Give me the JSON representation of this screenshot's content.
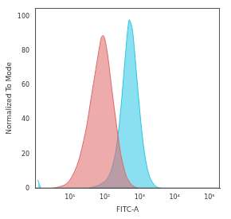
{
  "chart_data": {
    "type": "line",
    "x_label": "FITC-A",
    "y_label": "Normalized To Mode",
    "x": [
      1.2,
      1.5,
      2,
      3,
      5,
      7,
      10,
      15,
      20,
      30,
      40,
      50,
      60,
      70,
      80,
      90,
      100,
      120,
      150,
      200,
      250,
      300,
      400,
      500,
      600,
      700,
      800,
      1000,
      1200,
      1500,
      2000,
      3000,
      5000,
      10000,
      100000,
      200000
    ],
    "series": [
      {
        "color": "#e06666",
        "values": [
          0,
          0,
          0,
          0,
          1,
          2,
          5,
          12,
          20,
          36,
          52,
          64,
          74,
          82,
          88,
          89,
          87,
          78,
          62,
          42,
          28,
          18,
          8,
          4,
          2,
          1,
          0.5,
          0,
          0,
          0,
          0,
          0,
          0,
          0,
          0,
          0
        ]
      },
      {
        "color": "#29c5e6",
        "values": [
          5,
          0,
          0,
          0,
          0,
          0,
          0,
          0,
          0,
          0,
          0.5,
          1,
          1.5,
          2,
          3,
          3.5,
          4,
          6,
          10,
          20,
          34,
          50,
          80,
          98,
          94,
          82,
          68,
          46,
          30,
          16,
          6,
          1,
          0,
          0,
          0,
          0
        ]
      }
    ],
    "log": "x",
    "xlim": [
      1,
      200000
    ],
    "xticks": [
      {
        "value": 10,
        "label": "10¹"
      },
      {
        "value": 100,
        "label": "10²"
      },
      {
        "value": 1000,
        "label": "10³"
      },
      {
        "value": 10000,
        "label": "10⁴"
      },
      {
        "value": 100000,
        "label": "10⁵"
      }
    ],
    "ylim": [
      0,
      105
    ],
    "yticks": [
      0,
      20,
      40,
      60,
      80,
      100
    ],
    "grid": false
  }
}
